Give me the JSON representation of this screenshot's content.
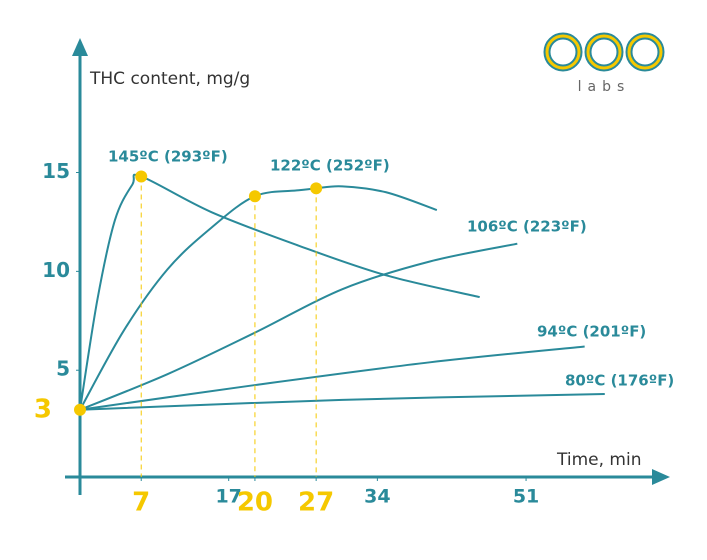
{
  "chart_data": {
    "type": "line",
    "y_label": "THC content, mg/g",
    "x_label": "Time, min",
    "brand": "labs",
    "xlim": [
      0,
      67
    ],
    "ylim": [
      -0.4,
      21.6
    ],
    "xticks": [
      7,
      17,
      20,
      27,
      34,
      51
    ],
    "yticks": [
      3,
      5,
      10,
      15
    ],
    "color": "#2a8a9a",
    "series": [
      {
        "name": "145ºC (293ºF)",
        "color": "#2a8a9a",
        "x": [
          0,
          2,
          4,
          6,
          7,
          15,
          25,
          35,
          45.7
        ],
        "values": [
          3,
          8.6,
          12.6,
          14.4,
          14.8,
          13,
          11.3,
          9.8,
          8.7
        ]
      },
      {
        "name": "122ºC (252ºF)",
        "color": "#2a8a9a",
        "x": [
          0,
          5,
          10,
          15,
          20,
          25,
          27,
          30,
          35,
          40.8
        ],
        "values": [
          3,
          7.0,
          10.1,
          12.2,
          13.8,
          14.1,
          14.2,
          14.3,
          14.0,
          13.1
        ]
      },
      {
        "name": "106ºC (223ºF)",
        "color": "#2a8a9a",
        "x": [
          0,
          10,
          20,
          30,
          40,
          50
        ],
        "values": [
          3,
          4.8,
          6.9,
          9.1,
          10.5,
          11.4
        ]
      },
      {
        "name": "94ºC (201ºF)",
        "color": "#2a8a9a",
        "x": [
          0,
          20,
          40,
          57.7
        ],
        "values": [
          3,
          4.25,
          5.4,
          6.2
        ]
      },
      {
        "name": "80ºC (176ºF)",
        "color": "#2a8a9a",
        "x": [
          0,
          30,
          60
        ],
        "values": [
          3,
          3.5,
          3.8
        ]
      }
    ],
    "markers": {
      "color": "#f5c800",
      "x": [
        0,
        7,
        20,
        27
      ],
      "values": [
        3,
        14.8,
        13.8,
        14.2
      ]
    }
  }
}
